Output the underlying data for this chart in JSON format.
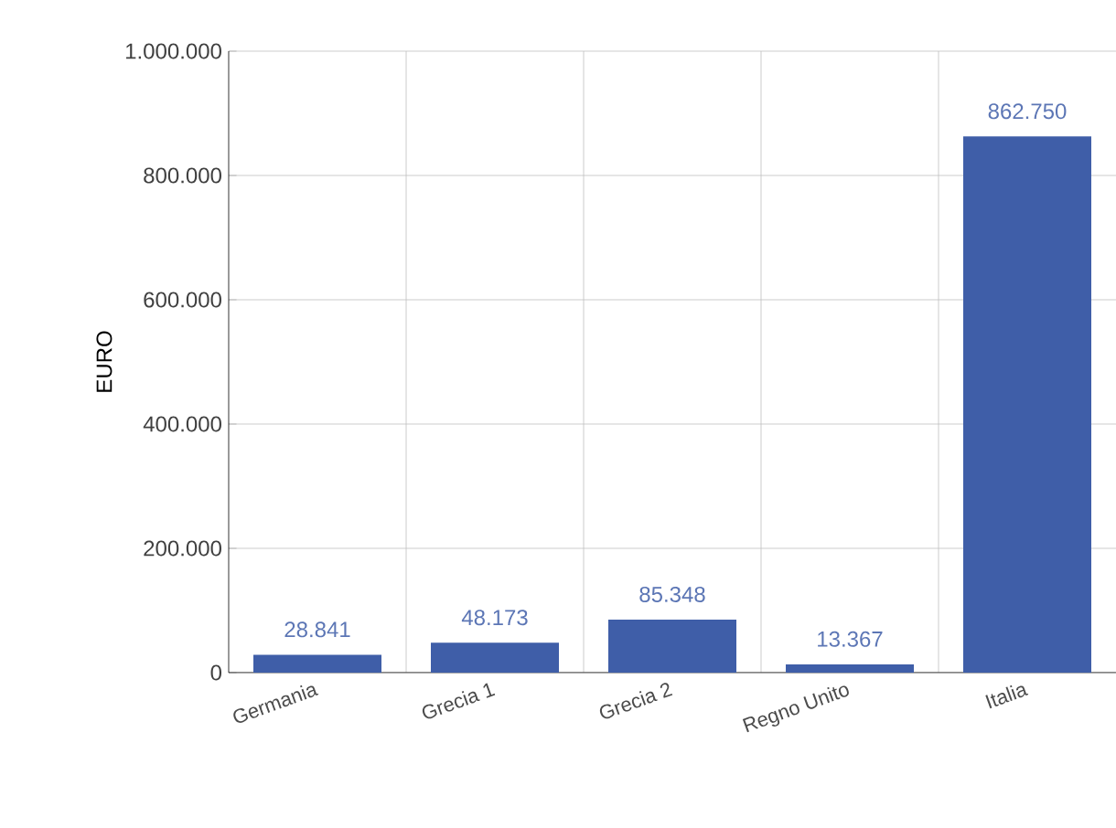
{
  "chart_data": {
    "type": "bar",
    "ylabel": "EURO",
    "categories": [
      "Germania",
      "Grecia 1",
      "Grecia 2",
      "Regno Unito",
      "Italia"
    ],
    "values": [
      28841,
      48173,
      85348,
      13367,
      862750
    ],
    "value_labels": [
      "28.841",
      "48.173",
      "85.348",
      "13.367",
      "862.750"
    ],
    "color": "#3f5ea8",
    "ylim": [
      0,
      1000000
    ],
    "yticks": [
      {
        "value": 0,
        "label": "0"
      },
      {
        "value": 200000,
        "label": "200.000"
      },
      {
        "value": 400000,
        "label": "400.000"
      },
      {
        "value": 600000,
        "label": "600.000"
      },
      {
        "value": 800000,
        "label": "800.000"
      },
      {
        "value": 1000000,
        "label": "1.000.000"
      }
    ],
    "grid": true
  }
}
